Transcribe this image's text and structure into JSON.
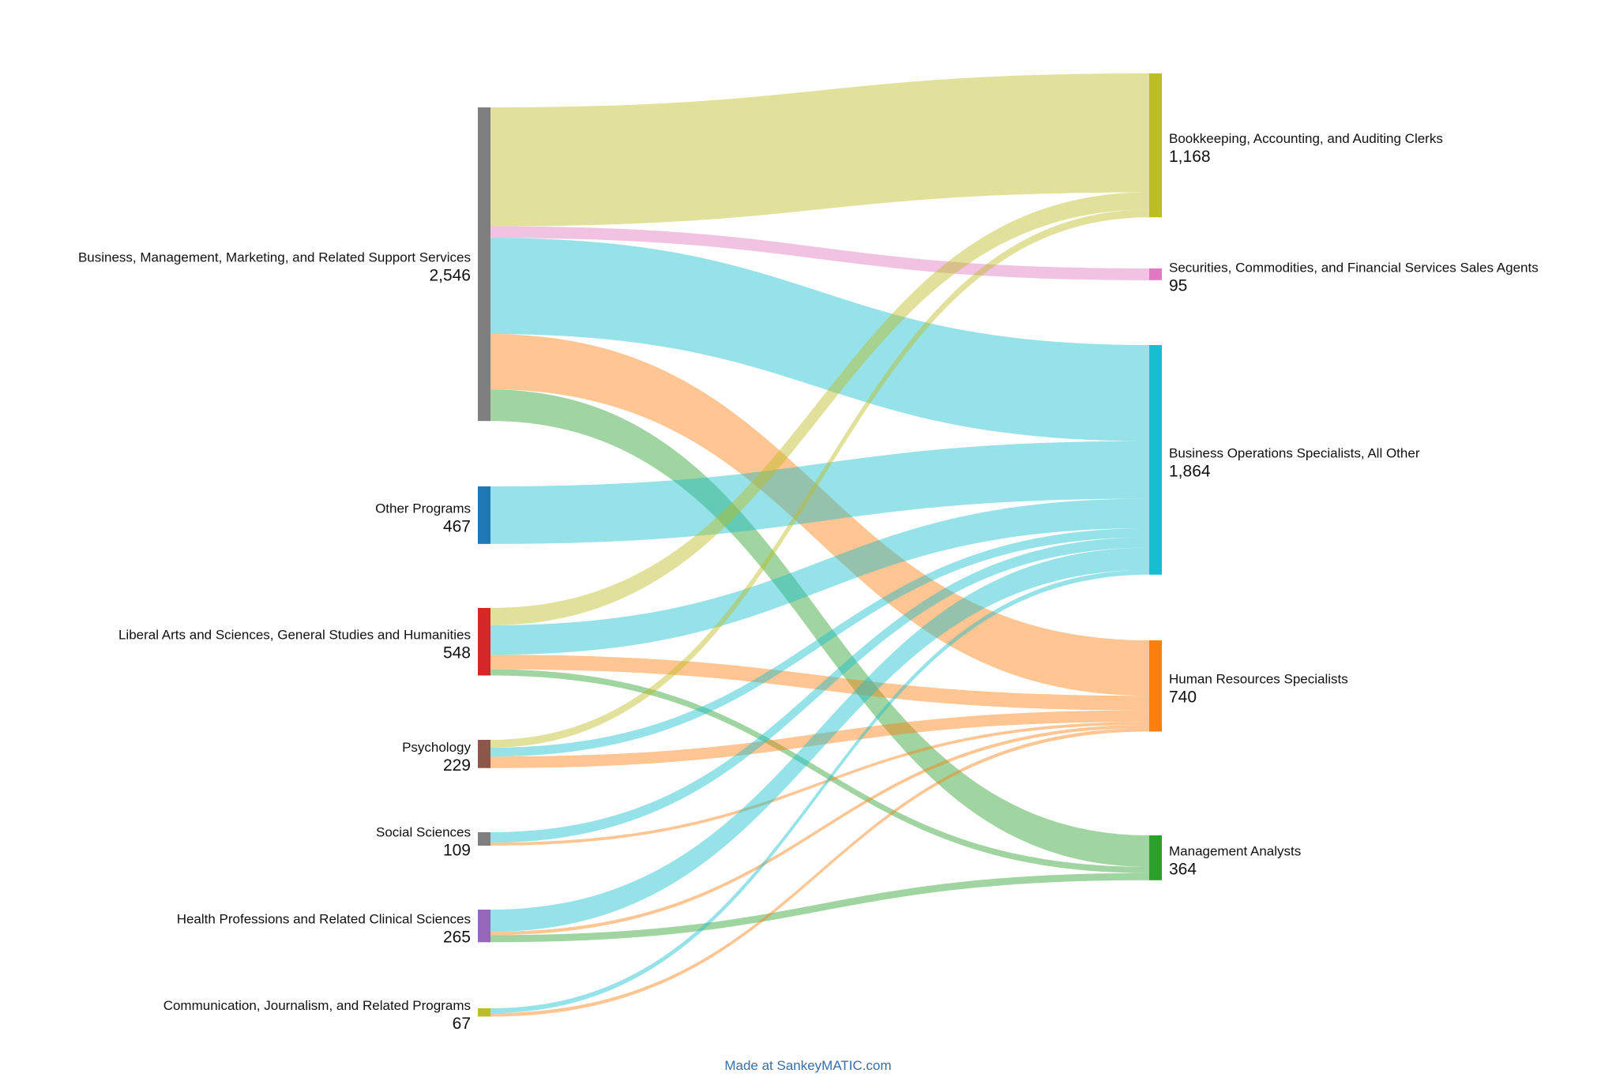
{
  "chart_data": {
    "type": "sankey",
    "title": "",
    "credit": "Made at SankeyMATIC.com",
    "sources": [
      {
        "id": "bus",
        "label": "Business, Management, Marketing, and Related Support Services",
        "value": "2,546",
        "color": "#7f7f7f"
      },
      {
        "id": "oth",
        "label": "Other Programs",
        "value": "467",
        "color": "#1f77b4"
      },
      {
        "id": "lib",
        "label": "Liberal Arts and Sciences, General Studies and Humanities",
        "value": "548",
        "color": "#d62728"
      },
      {
        "id": "psy",
        "label": "Psychology",
        "value": "229",
        "color": "#8c564b"
      },
      {
        "id": "soc",
        "label": "Social Sciences",
        "value": "109",
        "color": "#7f7f7f"
      },
      {
        "id": "hea",
        "label": "Health Professions and Related Clinical Sciences",
        "value": "265",
        "color": "#9467bd"
      },
      {
        "id": "com",
        "label": "Communication, Journalism, and Related Programs",
        "value": "67",
        "color": "#bcbd22"
      }
    ],
    "targets": [
      {
        "id": "book",
        "label": "Bookkeeping, Accounting, and Auditing Clerks",
        "value": "1,168",
        "color": "#bcbd22"
      },
      {
        "id": "sec",
        "label": "Securities, Commodities, and Financial Services Sales Agents",
        "value": "95",
        "color": "#e377c2"
      },
      {
        "id": "bos",
        "label": "Business Operations Specialists, All Other",
        "value": "1,864",
        "color": "#17becf"
      },
      {
        "id": "hr",
        "label": "Human Resources Specialists",
        "value": "740",
        "color": "#ff7f0e"
      },
      {
        "id": "man",
        "label": "Management Analysts",
        "value": "364",
        "color": "#2ca02c"
      }
    ],
    "flows": [
      {
        "from": "bus",
        "to": "book",
        "value": 965
      },
      {
        "from": "bus",
        "to": "sec",
        "value": 95
      },
      {
        "from": "bus",
        "to": "bos",
        "value": 780
      },
      {
        "from": "bus",
        "to": "hr",
        "value": 450
      },
      {
        "from": "bus",
        "to": "man",
        "value": 256
      },
      {
        "from": "oth",
        "to": "bos",
        "value": 467
      },
      {
        "from": "lib",
        "to": "book",
        "value": 140
      },
      {
        "from": "lib",
        "to": "bos",
        "value": 240
      },
      {
        "from": "lib",
        "to": "hr",
        "value": 118
      },
      {
        "from": "lib",
        "to": "man",
        "value": 50
      },
      {
        "from": "psy",
        "to": "book",
        "value": 63
      },
      {
        "from": "psy",
        "to": "bos",
        "value": 73
      },
      {
        "from": "psy",
        "to": "hr",
        "value": 93
      },
      {
        "from": "soc",
        "to": "bos",
        "value": 85
      },
      {
        "from": "soc",
        "to": "hr",
        "value": 24
      },
      {
        "from": "hea",
        "to": "bos",
        "value": 180
      },
      {
        "from": "hea",
        "to": "hr",
        "value": 27
      },
      {
        "from": "hea",
        "to": "man",
        "value": 58
      },
      {
        "from": "com",
        "to": "bos",
        "value": 39
      },
      {
        "from": "com",
        "to": "hr",
        "value": 28
      }
    ]
  }
}
